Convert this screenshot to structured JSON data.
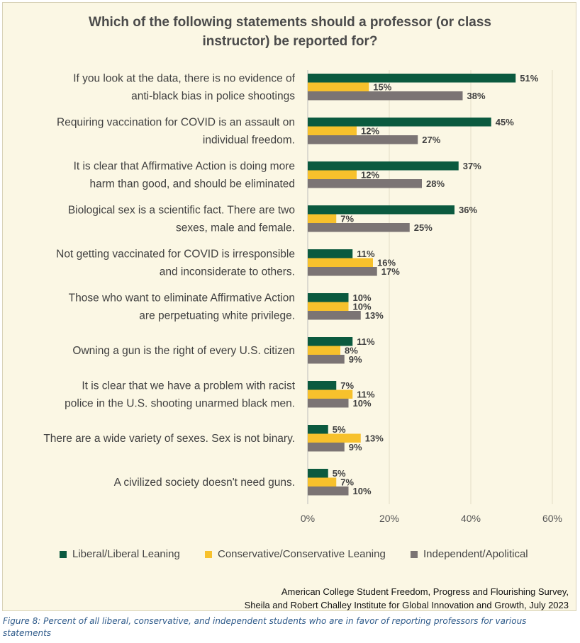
{
  "title": "Which of the following statements should a professor (or class instructor) be reported for?",
  "chart_data": {
    "type": "bar",
    "orientation": "horizontal",
    "title": "Which of the following statements should a professor (or class instructor) be reported for?",
    "categories": [
      [
        "If you look at the data, there is no evidence of",
        "anti-black bias in police shootings"
      ],
      [
        "Requiring vaccination for COVID is an assault on",
        "individual freedom."
      ],
      [
        "It is clear that Affirmative Action is doing more",
        "harm than good, and should be eliminated"
      ],
      [
        "Biological sex is a scientific fact. There are two",
        "sexes, male and female."
      ],
      [
        "Not getting vaccinated for COVID is irresponsible",
        "and inconsiderate to others."
      ],
      [
        "Those who want to eliminate Affirmative Action",
        "are perpetuating white privilege."
      ],
      [
        "Owning a gun is the right of every U.S. citizen"
      ],
      [
        "It is clear that we have a problem with racist",
        "police in the U.S. shooting unarmed black men."
      ],
      [
        "There are a wide variety of sexes. Sex is not binary."
      ],
      [
        "A civilized society doesn't need guns."
      ]
    ],
    "series": [
      {
        "name": "Liberal/Liberal Leaning",
        "color": "#0b5a3f",
        "values": [
          51,
          45,
          37,
          36,
          11,
          10,
          11,
          7,
          5,
          5
        ]
      },
      {
        "name": "Conservative/Conservative Leaning",
        "color": "#f7c12c",
        "values": [
          15,
          12,
          12,
          7,
          16,
          10,
          8,
          11,
          13,
          7
        ]
      },
      {
        "name": "Independent/Apolitical",
        "color": "#7b7474",
        "values": [
          38,
          27,
          28,
          25,
          17,
          13,
          9,
          10,
          9,
          10
        ]
      }
    ],
    "value_suffix": "%",
    "xlim": [
      0,
      60
    ],
    "xticks": [
      "0%",
      "20%",
      "40%",
      "60%"
    ],
    "xtick_values": [
      0,
      20,
      40,
      60
    ],
    "grid": "vertical",
    "legend_position": "bottom"
  },
  "source_lines": [
    "American College Student Freedom, Progress and Flourishing Survey,",
    "Sheila and Robert Challey Institute for Global Innovation and Growth, July 2023"
  ],
  "caption": "Figure 8: Percent of all liberal, conservative, and independent students who are in favor of reporting professors for various statements"
}
